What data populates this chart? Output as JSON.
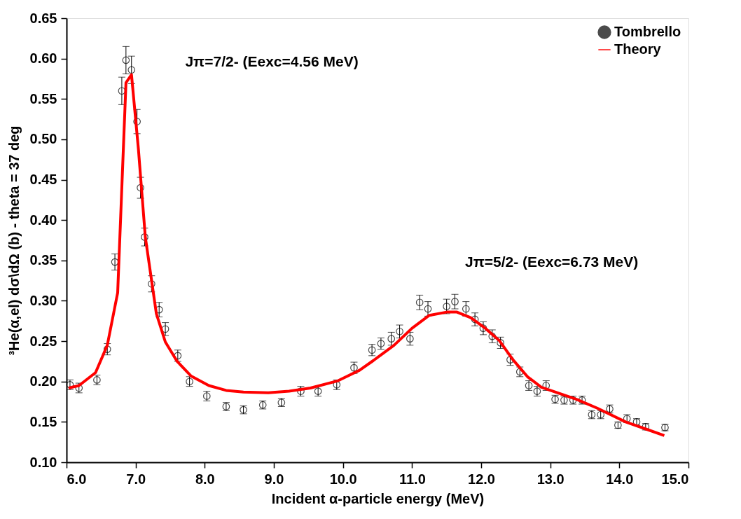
{
  "chart_data": {
    "type": "scatter",
    "xlabel": "Incident α-particle energy (MeV)",
    "ylabel": "³He(α,el) dσ\\dΩ (b) - theta = 37 deg",
    "annotations": [
      "Jπ=7/2- (Eexc=4.56 MeV)",
      "Jπ=5/2- (Eexc=6.73 MeV)"
    ],
    "xlim": [
      6,
      15
    ],
    "xticks": [
      {
        "value": 6,
        "label": "6.0"
      },
      {
        "value": 7,
        "label": "7.0"
      },
      {
        "value": 8,
        "label": "8.0"
      },
      {
        "value": 9,
        "label": "9.0"
      },
      {
        "value": 10,
        "label": "10.0"
      },
      {
        "value": 11,
        "label": "11.0"
      },
      {
        "value": 12,
        "label": "12.0"
      },
      {
        "value": 13,
        "label": "13.0"
      },
      {
        "value": 14,
        "label": "14.0"
      },
      {
        "value": 15,
        "label": "15.0"
      }
    ],
    "ylim": [
      0.1,
      0.65
    ],
    "yticks": [
      {
        "value": 0.1,
        "label": "0.10"
      },
      {
        "value": 0.15,
        "label": "0.15"
      },
      {
        "value": 0.2,
        "label": "0.20"
      },
      {
        "value": 0.25,
        "label": "0.25"
      },
      {
        "value": 0.3,
        "label": "0.30"
      },
      {
        "value": 0.35,
        "label": "0.35"
      },
      {
        "value": 0.4,
        "label": "0.40"
      },
      {
        "value": 0.45,
        "label": "0.45"
      },
      {
        "value": 0.5,
        "label": "0.50"
      },
      {
        "value": 0.55,
        "label": "0.55"
      },
      {
        "value": 0.6,
        "label": "0.60"
      },
      {
        "value": 0.65,
        "label": "0.65"
      }
    ],
    "grid": false,
    "legend": "top right",
    "series": [
      {
        "name": "Tombrello",
        "marker": "circle",
        "color": "#000000",
        "x": [
          6.05,
          6.18,
          6.44,
          6.59,
          6.7,
          6.8,
          6.86,
          6.94,
          7.02,
          7.07,
          7.13,
          7.23,
          7.34,
          7.43,
          7.61,
          7.78,
          8.03,
          8.31,
          8.56,
          8.84,
          9.11,
          9.39,
          9.64,
          9.91,
          10.16,
          10.42,
          10.55,
          10.7,
          10.82,
          10.97,
          11.11,
          11.23,
          11.5,
          11.62,
          11.78,
          11.91,
          12.03,
          12.16,
          12.28,
          12.42,
          12.56,
          12.69,
          12.81,
          12.94,
          13.07,
          13.2,
          13.33,
          13.46,
          13.6,
          13.73,
          13.86,
          13.98,
          14.11,
          14.25,
          14.38,
          14.66
        ],
        "values": [
          0.196,
          0.192,
          0.202,
          0.24,
          0.348,
          0.56,
          0.598,
          0.586,
          0.522,
          0.44,
          0.379,
          0.321,
          0.289,
          0.265,
          0.232,
          0.2,
          0.182,
          0.169,
          0.165,
          0.171,
          0.174,
          0.188,
          0.188,
          0.196,
          0.217,
          0.239,
          0.247,
          0.253,
          0.262,
          0.253,
          0.298,
          0.29,
          0.293,
          0.299,
          0.29,
          0.277,
          0.266,
          0.256,
          0.248,
          0.227,
          0.212,
          0.195,
          0.188,
          0.195,
          0.178,
          0.177,
          0.177,
          0.177,
          0.159,
          0.159,
          0.166,
          0.146,
          0.154,
          0.15,
          0.144,
          0.143
        ],
        "errors": [
          0.006,
          0.006,
          0.006,
          0.007,
          0.01,
          0.017,
          0.017,
          0.017,
          0.015,
          0.013,
          0.011,
          0.01,
          0.009,
          0.008,
          0.007,
          0.006,
          0.006,
          0.005,
          0.005,
          0.005,
          0.005,
          0.006,
          0.006,
          0.006,
          0.007,
          0.007,
          0.007,
          0.008,
          0.008,
          0.008,
          0.009,
          0.009,
          0.009,
          0.009,
          0.009,
          0.008,
          0.008,
          0.008,
          0.007,
          0.007,
          0.006,
          0.006,
          0.006,
          0.006,
          0.005,
          0.005,
          0.005,
          0.005,
          0.005,
          0.005,
          0.005,
          0.004,
          0.005,
          0.004,
          0.004,
          0.004
        ]
      },
      {
        "name": "Theory",
        "type": "line",
        "marker": "none",
        "color": "#ff0000",
        "x": [
          6.03,
          6.18,
          6.42,
          6.59,
          6.74,
          6.86,
          6.94,
          7.04,
          7.14,
          7.3,
          7.43,
          7.6,
          7.8,
          8.06,
          8.31,
          8.56,
          8.92,
          9.22,
          9.53,
          9.93,
          10.24,
          10.44,
          10.74,
          11.0,
          11.25,
          11.5,
          11.65,
          11.85,
          12.06,
          12.26,
          12.46,
          12.67,
          12.87,
          13.07,
          13.38,
          13.68,
          14.09,
          14.39,
          14.65
        ],
        "values": [
          0.192,
          0.195,
          0.211,
          0.245,
          0.31,
          0.57,
          0.58,
          0.488,
          0.379,
          0.284,
          0.249,
          0.225,
          0.207,
          0.195,
          0.189,
          0.187,
          0.186,
          0.188,
          0.192,
          0.201,
          0.214,
          0.226,
          0.245,
          0.266,
          0.282,
          0.286,
          0.286,
          0.279,
          0.266,
          0.251,
          0.227,
          0.206,
          0.193,
          0.187,
          0.178,
          0.167,
          0.15,
          0.141,
          0.133
        ]
      }
    ]
  }
}
